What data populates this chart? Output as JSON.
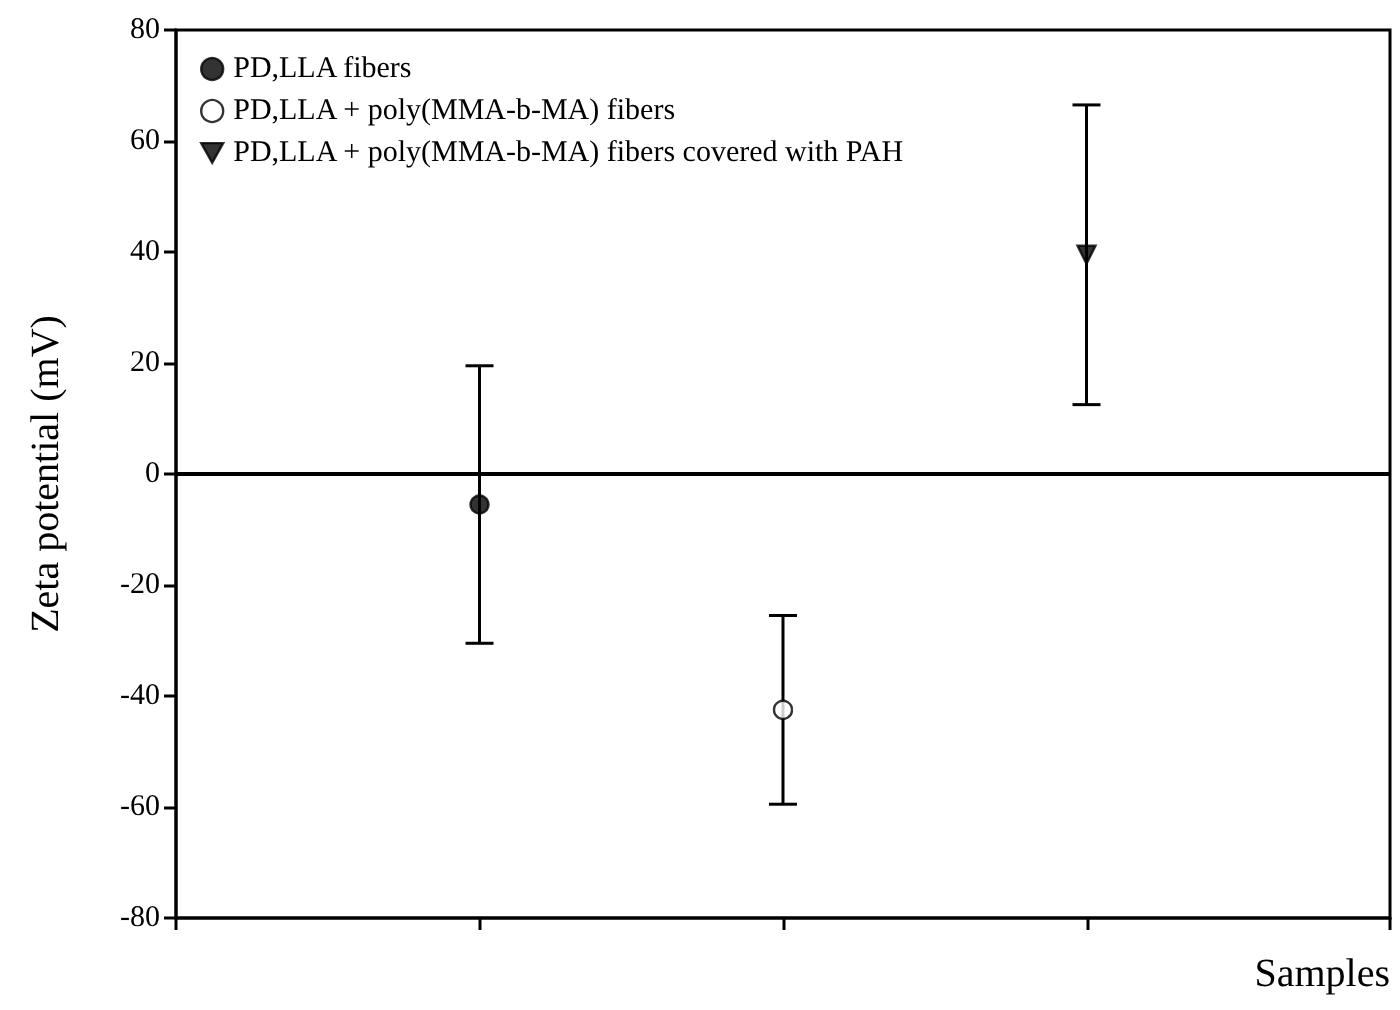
{
  "chart_data": {
    "type": "scatter",
    "xlabel": "Samples",
    "ylabel": "Zeta potential (mV)",
    "categories": [
      null,
      null,
      null,
      null,
      null
    ],
    "ylim": [
      -80,
      80
    ],
    "yticks": [
      -80,
      -60,
      -40,
      -20,
      0,
      20,
      40,
      60,
      80
    ],
    "grid": false,
    "legend": "top left",
    "ref_lines": [
      {
        "axis": "y",
        "value": 0,
        "color": "#000000"
      }
    ],
    "series": [
      {
        "name": "PD,LLA fibers",
        "color": "#000000",
        "marker": "circle",
        "values": [
          null,
          -5.5,
          null,
          null,
          null
        ],
        "errors": [
          null,
          [
            -30.5,
            19.5
          ],
          null,
          null,
          null
        ]
      },
      {
        "name": "PD,LLA + poly(MMA-b-MA) fibers",
        "color": "#ffffff",
        "marker": "circle",
        "values": [
          null,
          null,
          -42.5,
          null,
          null
        ],
        "errors": [
          null,
          null,
          [
            -59.5,
            -25.5
          ],
          null,
          null
        ]
      },
      {
        "name": "PD,LLA + poly(MMA-b-MA) fibers covered with PAH",
        "color": "#000000",
        "marker": "triangle",
        "values": [
          null,
          null,
          null,
          39.5,
          null
        ],
        "errors": [
          null,
          null,
          null,
          [
            12.5,
            66.5
          ],
          null
        ]
      }
    ]
  }
}
